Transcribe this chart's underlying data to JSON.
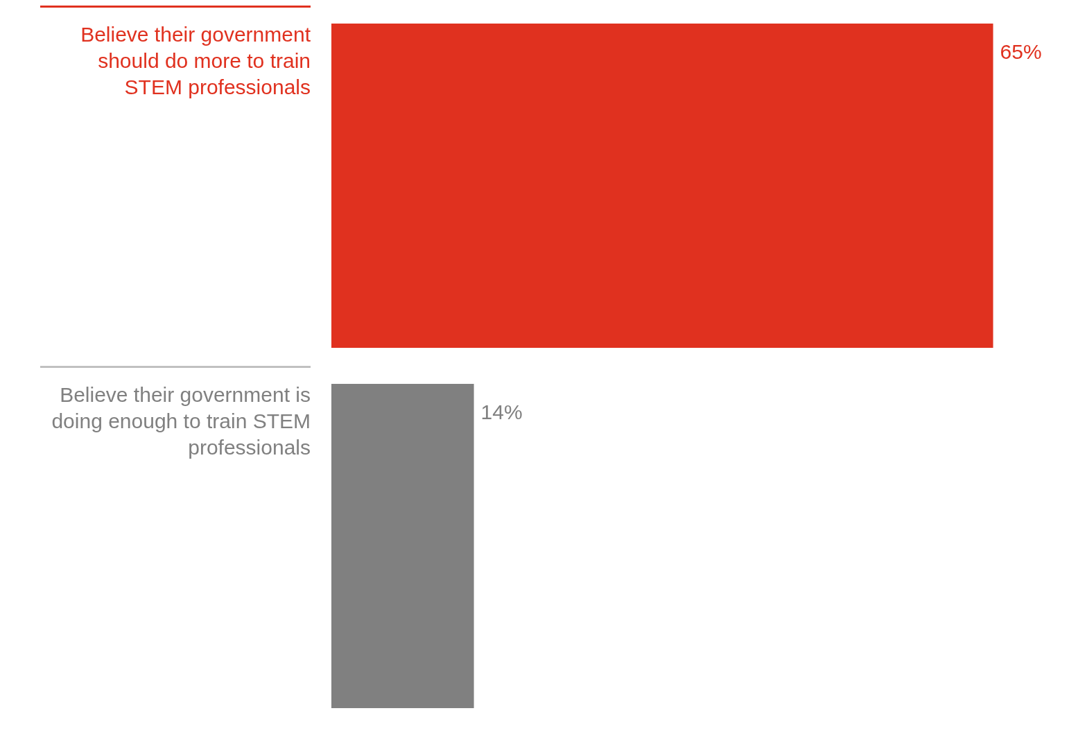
{
  "chart_data": {
    "type": "bar",
    "orientation": "horizontal",
    "categories": [
      "Believe their government should do more to train STEM professionals",
      "Believe their government is doing enough to train STEM professionals"
    ],
    "values": [
      65,
      14
    ],
    "colors": [
      "#e0311f",
      "#808080"
    ],
    "value_labels": [
      "65%",
      "14%"
    ],
    "legend": false
  }
}
